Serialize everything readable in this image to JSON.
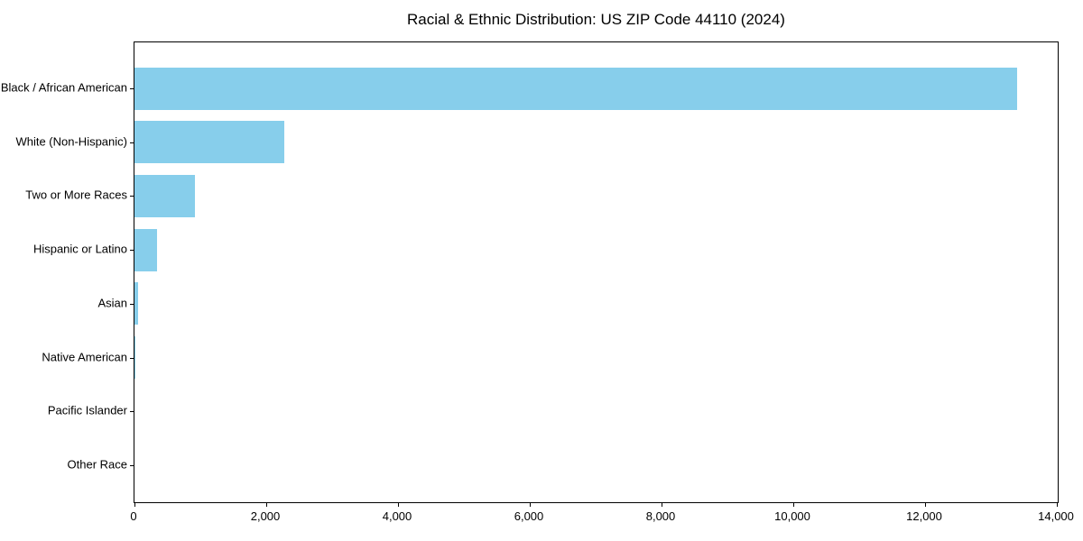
{
  "title": "Racial & Ethnic Distribution: US ZIP Code 44110 (2024)",
  "chart_data": {
    "type": "bar",
    "orientation": "horizontal",
    "title": "Racial & Ethnic Distribution: US ZIP Code 44110 (2024)",
    "xlabel": "",
    "ylabel": "",
    "categories": [
      "Black / African American",
      "White (Non-Hispanic)",
      "Two or More Races",
      "Hispanic or Latino",
      "Asian",
      "Native American",
      "Pacific Islander",
      "Other Race"
    ],
    "values": [
      13400,
      2270,
      920,
      340,
      50,
      10,
      0,
      0
    ],
    "xlim": [
      0,
      14000
    ],
    "xticks": [
      0,
      2000,
      4000,
      6000,
      8000,
      10000,
      12000,
      14000
    ],
    "xtick_labels": [
      "0",
      "2,000",
      "4,000",
      "6,000",
      "8,000",
      "10,000",
      "12,000",
      "14,000"
    ],
    "bar_color": "#87CEEB",
    "background_color": "#ffffff",
    "grid": false,
    "legend": null
  }
}
